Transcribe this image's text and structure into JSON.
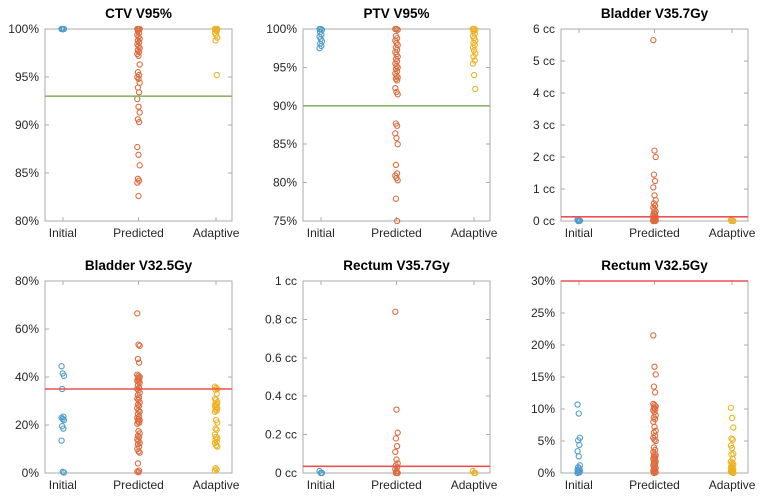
{
  "figure": {
    "background": "#ffffff",
    "axis_color": "#ababab",
    "text_color": "#262626",
    "marker_colors": {
      "initial": "#4E9CCB",
      "predicted": "#DD6B3C",
      "adaptive": "#EDB120"
    },
    "refline_colors": {
      "green": "#8CB564",
      "red": "#EC524E"
    }
  },
  "chart_data": [
    {
      "type": "scatter",
      "title": "CTV V95%",
      "categories": [
        "Initial",
        "Predicted",
        "Adaptive"
      ],
      "ylim": [
        80,
        100
      ],
      "ytick_values": [
        80,
        85,
        90,
        95,
        100
      ],
      "ytick_labels": [
        "80%",
        "85%",
        "90%",
        "95%",
        "100%"
      ],
      "grid": false,
      "legend": "none",
      "refline": {
        "value": 93,
        "color": "#8CB564"
      },
      "series": [
        {
          "name": "Initial",
          "color": "#4E9CCB",
          "values": [
            100,
            100,
            100,
            100
          ]
        },
        {
          "name": "Predicted",
          "color": "#DD6B3C",
          "values": [
            100,
            100,
            100,
            99.8,
            99.6,
            99.4,
            99.2,
            99.0,
            98.8,
            98.6,
            98.4,
            98.2,
            98.0,
            97.8,
            97.6,
            97.4,
            97.2,
            96.3,
            95.5,
            95.2,
            95.0,
            94.8,
            94.4,
            93.9,
            93.4,
            92.7,
            91.9,
            91.3,
            90.6,
            90.3,
            87.7,
            86.9,
            85.8,
            84.4,
            84.2,
            84.0,
            82.6
          ]
        },
        {
          "name": "Adaptive",
          "color": "#EDB120",
          "values": [
            100,
            100,
            100,
            99.9,
            99.8,
            99.6,
            99.4,
            99.1,
            98.8,
            95.2
          ]
        }
      ]
    },
    {
      "type": "scatter",
      "title": "PTV V95%",
      "categories": [
        "Initial",
        "Predicted",
        "Adaptive"
      ],
      "ylim": [
        75,
        100
      ],
      "ytick_values": [
        75,
        80,
        85,
        90,
        95,
        100
      ],
      "ytick_labels": [
        "75%",
        "80%",
        "85%",
        "90%",
        "95%",
        "100%"
      ],
      "grid": false,
      "legend": "none",
      "refline": {
        "value": 90,
        "color": "#8CB564"
      },
      "series": [
        {
          "name": "Initial",
          "color": "#4E9CCB",
          "values": [
            100,
            100,
            99.9,
            99.6,
            99.3,
            99.0,
            98.7,
            98.4,
            98.1,
            97.8,
            97.5
          ]
        },
        {
          "name": "Predicted",
          "color": "#DD6B3C",
          "values": [
            100,
            100,
            99.9,
            99.1,
            98.8,
            98.5,
            98.2,
            97.9,
            97.6,
            97.3,
            97.0,
            96.7,
            96.4,
            96.1,
            95.8,
            95.5,
            95.2,
            95.0,
            94.8,
            94.5,
            94.2,
            93.9,
            93.7,
            93.5,
            93.3,
            92.3,
            91.8,
            91.5,
            87.7,
            87.4,
            86.4,
            85.8,
            85.0,
            82.3,
            81.2,
            80.9,
            80.6,
            80.3,
            77.9,
            75.0
          ]
        },
        {
          "name": "Adaptive",
          "color": "#EDB120",
          "values": [
            100,
            100,
            99.9,
            99.7,
            99.4,
            99.1,
            98.8,
            98.5,
            98.2,
            97.9,
            97.6,
            97.2,
            96.8,
            96.4,
            95.9,
            95.5,
            94.0,
            92.2
          ]
        }
      ]
    },
    {
      "type": "scatter",
      "title": "Bladder V35.7Gy",
      "categories": [
        "Initial",
        "Predicted",
        "Adaptive"
      ],
      "ylim": [
        0,
        6
      ],
      "ytick_values": [
        0,
        1,
        2,
        3,
        4,
        5,
        6
      ],
      "ytick_labels": [
        "0 cc",
        "1 cc",
        "2 cc",
        "3 cc",
        "4 cc",
        "5 cc",
        "6 cc"
      ],
      "grid": false,
      "legend": "none",
      "refline": {
        "value": 0.13,
        "color": "#EC524E"
      },
      "series": [
        {
          "name": "Initial",
          "color": "#4E9CCB",
          "values": [
            0.04,
            0.02,
            0.01,
            0,
            0
          ]
        },
        {
          "name": "Predicted",
          "color": "#DD6B3C",
          "values": [
            5.65,
            2.2,
            2.0,
            1.45,
            1.25,
            1.05,
            0.8,
            0.65,
            0.55,
            0.48,
            0.42,
            0.36,
            0.3,
            0.26,
            0.22,
            0.18,
            0.15,
            0.12,
            0.1,
            0.08,
            0.06,
            0.05,
            0.04,
            0.03,
            0.02,
            0.02,
            0.01,
            0.01,
            0,
            0,
            0,
            0
          ]
        },
        {
          "name": "Adaptive",
          "color": "#EDB120",
          "values": [
            0.03,
            0.01,
            0,
            0
          ]
        }
      ]
    },
    {
      "type": "scatter",
      "title": "Bladder V32.5Gy",
      "categories": [
        "Initial",
        "Predicted",
        "Adaptive"
      ],
      "ylim": [
        0,
        80
      ],
      "ytick_values": [
        0,
        20,
        40,
        60,
        80
      ],
      "ytick_labels": [
        "0%",
        "20%",
        "40%",
        "60%",
        "80%"
      ],
      "grid": false,
      "legend": "none",
      "refline": {
        "value": 35,
        "color": "#EC524E"
      },
      "series": [
        {
          "name": "Initial",
          "color": "#4E9CCB",
          "values": [
            44.5,
            41.5,
            40.5,
            35,
            23.5,
            23,
            22.5,
            22,
            19.5,
            18.5,
            13.5,
            0.5,
            0.2
          ]
        },
        {
          "name": "Predicted",
          "color": "#DD6B3C",
          "values": [
            66.5,
            53.5,
            53,
            47.5,
            46,
            41,
            40.5,
            40,
            39.5,
            39,
            38.5,
            38,
            37.5,
            36.5,
            35.5,
            35,
            34.5,
            33.5,
            32.5,
            31.5,
            31,
            30.5,
            29.5,
            28.5,
            28,
            27,
            26,
            25.5,
            24.5,
            23.5,
            23,
            22.5,
            22,
            21.5,
            21,
            20.5,
            17.5,
            16.5,
            15.5,
            15,
            14,
            13.5,
            12.5,
            12,
            11,
            10,
            9,
            8.5,
            4,
            1,
            0.6,
            0.3
          ]
        },
        {
          "name": "Adaptive",
          "color": "#EDB120",
          "values": [
            36,
            35.5,
            35,
            34.7,
            33,
            31,
            30.5,
            29.5,
            29,
            28.5,
            28,
            27.5,
            27,
            26.5,
            26,
            25.5,
            22,
            21,
            18.5,
            18,
            16,
            15,
            14.5,
            14,
            13,
            12.5,
            11.5,
            11,
            2,
            1.5,
            1
          ]
        }
      ]
    },
    {
      "type": "scatter",
      "title": "Rectum V35.7Gy",
      "categories": [
        "Initial",
        "Predicted",
        "Adaptive"
      ],
      "ylim": [
        0,
        1
      ],
      "ytick_values": [
        0,
        0.2,
        0.4,
        0.6,
        0.8,
        1
      ],
      "ytick_labels": [
        "0 cc",
        "0.2 cc",
        "0.4 cc",
        "0.6 cc",
        "0.8 cc",
        "1 cc"
      ],
      "grid": false,
      "legend": "none",
      "refline": {
        "value": 0.035,
        "color": "#EC524E"
      },
      "series": [
        {
          "name": "Initial",
          "color": "#4E9CCB",
          "values": [
            0.01,
            0,
            0
          ]
        },
        {
          "name": "Predicted",
          "color": "#DD6B3C",
          "values": [
            0.84,
            0.33,
            0.21,
            0.18,
            0.14,
            0.11,
            0.07,
            0.05,
            0.04,
            0.03,
            0.02,
            0.01,
            0,
            0,
            0
          ]
        },
        {
          "name": "Adaptive",
          "color": "#EDB120",
          "values": [
            0.01,
            0,
            0
          ]
        }
      ]
    },
    {
      "type": "scatter",
      "title": "Rectum V32.5Gy",
      "categories": [
        "Initial",
        "Predicted",
        "Adaptive"
      ],
      "ylim": [
        0,
        30
      ],
      "ytick_values": [
        0,
        5,
        10,
        15,
        20,
        25,
        30
      ],
      "ytick_labels": [
        "0%",
        "5%",
        "10%",
        "15%",
        "20%",
        "25%",
        "30%"
      ],
      "grid": false,
      "legend": "none",
      "refline": {
        "value": 30,
        "color": "#EC524E"
      },
      "series": [
        {
          "name": "Initial",
          "color": "#4E9CCB",
          "values": [
            10.7,
            9.3,
            5.5,
            5.1,
            4.4,
            3.4,
            2.6,
            1.2,
            0.9,
            0.7,
            0.5,
            0.4,
            0.3,
            0.2,
            0.1,
            0
          ]
        },
        {
          "name": "Predicted",
          "color": "#DD6B3C",
          "values": [
            21.5,
            16.6,
            15.4,
            13.5,
            12.6,
            10.8,
            10.6,
            10.4,
            10.2,
            10.0,
            9.8,
            9.5,
            9.0,
            8.7,
            8.4,
            8.0,
            7.2,
            6.6,
            6.3,
            5.8,
            5.5,
            5.2,
            5.0,
            4.0,
            3.6,
            3.3,
            3.0,
            2.8,
            2.6,
            2.4,
            2.2,
            2.0,
            1.8,
            1.6,
            1.4,
            1.2,
            1.0,
            0.8,
            0.6,
            0.4,
            0.3,
            0.2,
            0.1,
            0
          ]
        },
        {
          "name": "Adaptive",
          "color": "#EDB120",
          "values": [
            10.2,
            8.6,
            7.1,
            5.4,
            5.2,
            4.3,
            3.9,
            3.0,
            2.9,
            2.2,
            1.8,
            1.6,
            1.4,
            1.2,
            1.0,
            0.8,
            0.6,
            0.5,
            0.4,
            0.3,
            0.2,
            0.1,
            0
          ]
        }
      ]
    }
  ]
}
